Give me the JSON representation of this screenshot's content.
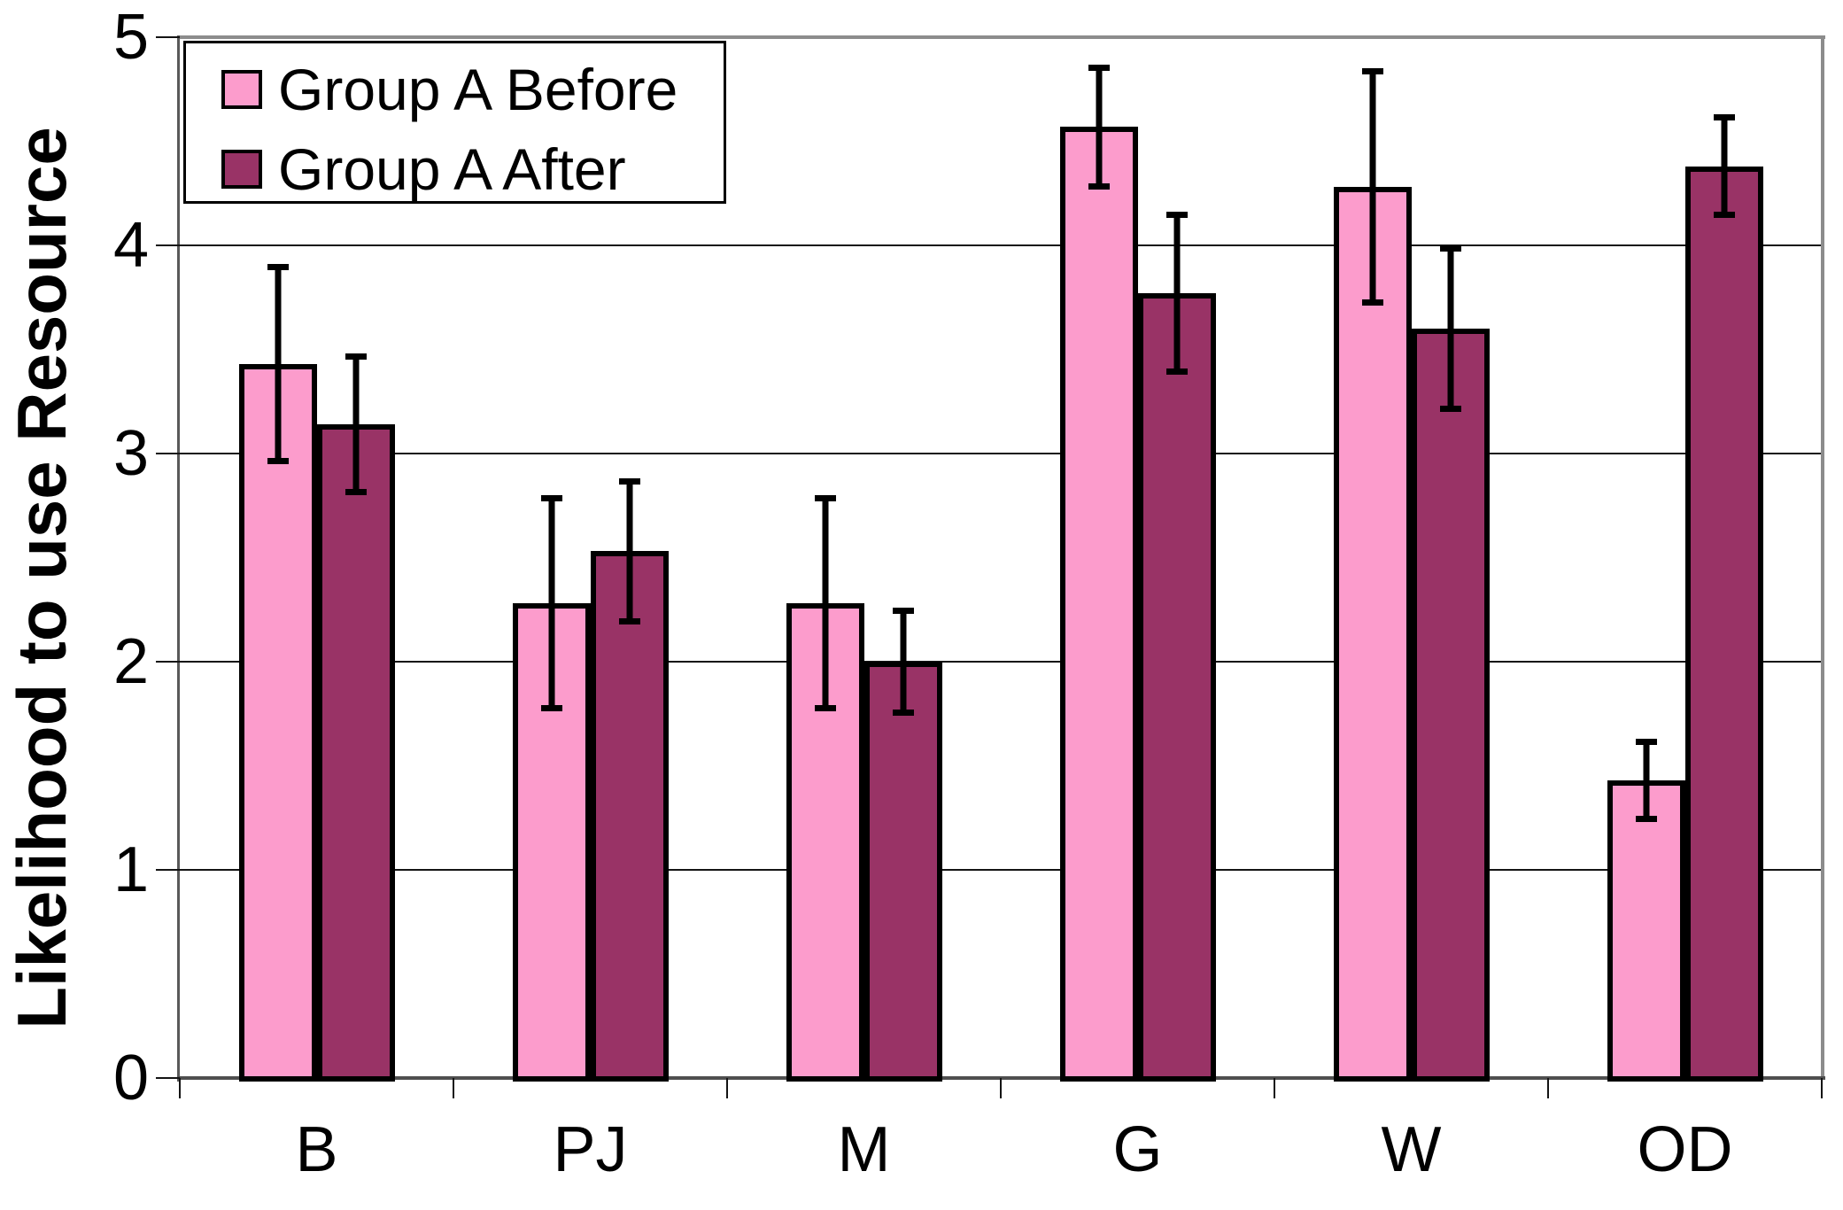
{
  "chart_data": {
    "type": "bar",
    "title": "",
    "xlabel": "",
    "ylabel": "Likelihood to use Resource",
    "categories": [
      "B",
      "PJ",
      "M",
      "G",
      "W",
      "OD"
    ],
    "series": [
      {
        "name": "Group A Before",
        "color": "#FC9CCC",
        "values": [
          3.43,
          2.28,
          2.28,
          4.57,
          4.28,
          1.43
        ],
        "errors": [
          0.48,
          0.52,
          0.52,
          0.3,
          0.57,
          0.2
        ]
      },
      {
        "name": "Group A After",
        "color": "#993366",
        "values": [
          3.14,
          2.53,
          2.0,
          3.77,
          3.6,
          4.38
        ],
        "errors": [
          0.34,
          0.35,
          0.26,
          0.39,
          0.4,
          0.25
        ]
      }
    ],
    "ylim": [
      0,
      5
    ],
    "yticks": [
      0,
      1,
      2,
      3,
      4,
      5
    ],
    "grid": true,
    "error_bars": true,
    "legend_position": "top-left"
  }
}
